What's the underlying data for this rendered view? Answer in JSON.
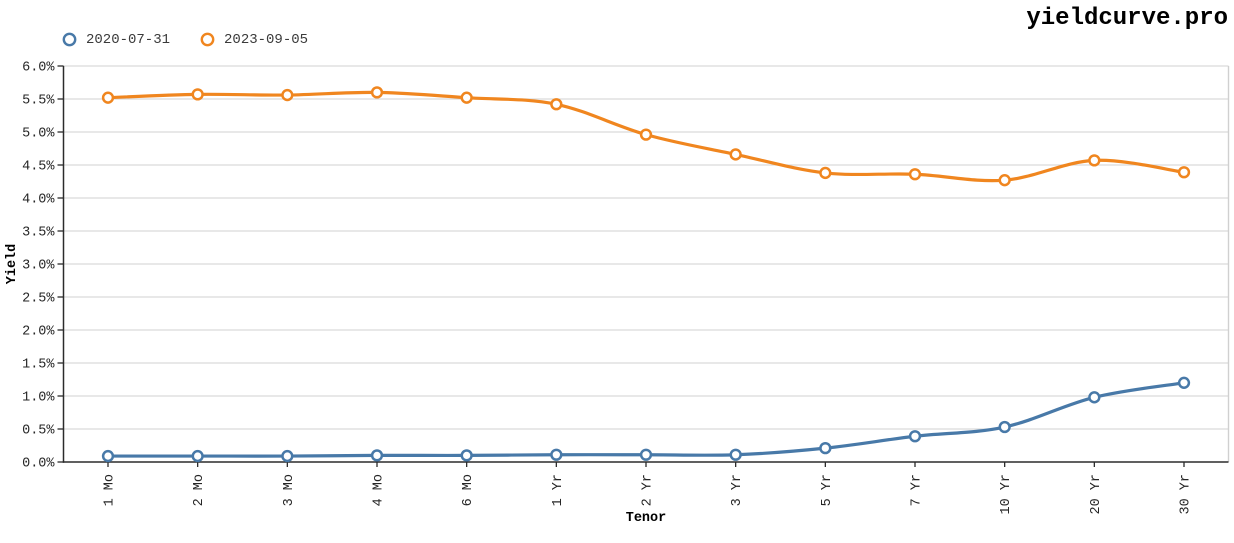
{
  "app": {
    "title": "yieldcurve.pro"
  },
  "chart_data": {
    "type": "line",
    "title": "",
    "xlabel": "Tenor",
    "ylabel": "Yield",
    "categories": [
      "1 Mo",
      "2 Mo",
      "3 Mo",
      "4 Mo",
      "6 Mo",
      "1 Yr",
      "2 Yr",
      "3 Yr",
      "5 Yr",
      "7 Yr",
      "10 Yr",
      "20 Yr",
      "30 Yr"
    ],
    "series": [
      {
        "name": "2020-07-31",
        "color": "#4879a8",
        "values": [
          0.09,
          0.09,
          0.09,
          0.1,
          0.1,
          0.11,
          0.11,
          0.11,
          0.21,
          0.39,
          0.53,
          0.98,
          1.2
        ]
      },
      {
        "name": "2023-09-05",
        "color": "#f0861f",
        "values": [
          5.52,
          5.57,
          5.56,
          5.6,
          5.52,
          5.42,
          4.96,
          4.66,
          4.38,
          4.36,
          4.27,
          4.57,
          4.39
        ]
      }
    ],
    "ylim": [
      0,
      6
    ],
    "ytick_step": 0.5,
    "ytick_format": "one_decimal_percent",
    "grid": true,
    "legend_position": "top-left",
    "marker": "open-circle",
    "line_style": "smooth"
  },
  "colors": {
    "background": "#ffffff",
    "grid": "#d9d9d9",
    "frame_light": "#d0d0d0",
    "axis": "#2b2b2b",
    "tick_text": "#262626",
    "axis_label_text": "#000000",
    "legend_text": "#3a3a3a",
    "marker_fill": "#ffffff"
  }
}
